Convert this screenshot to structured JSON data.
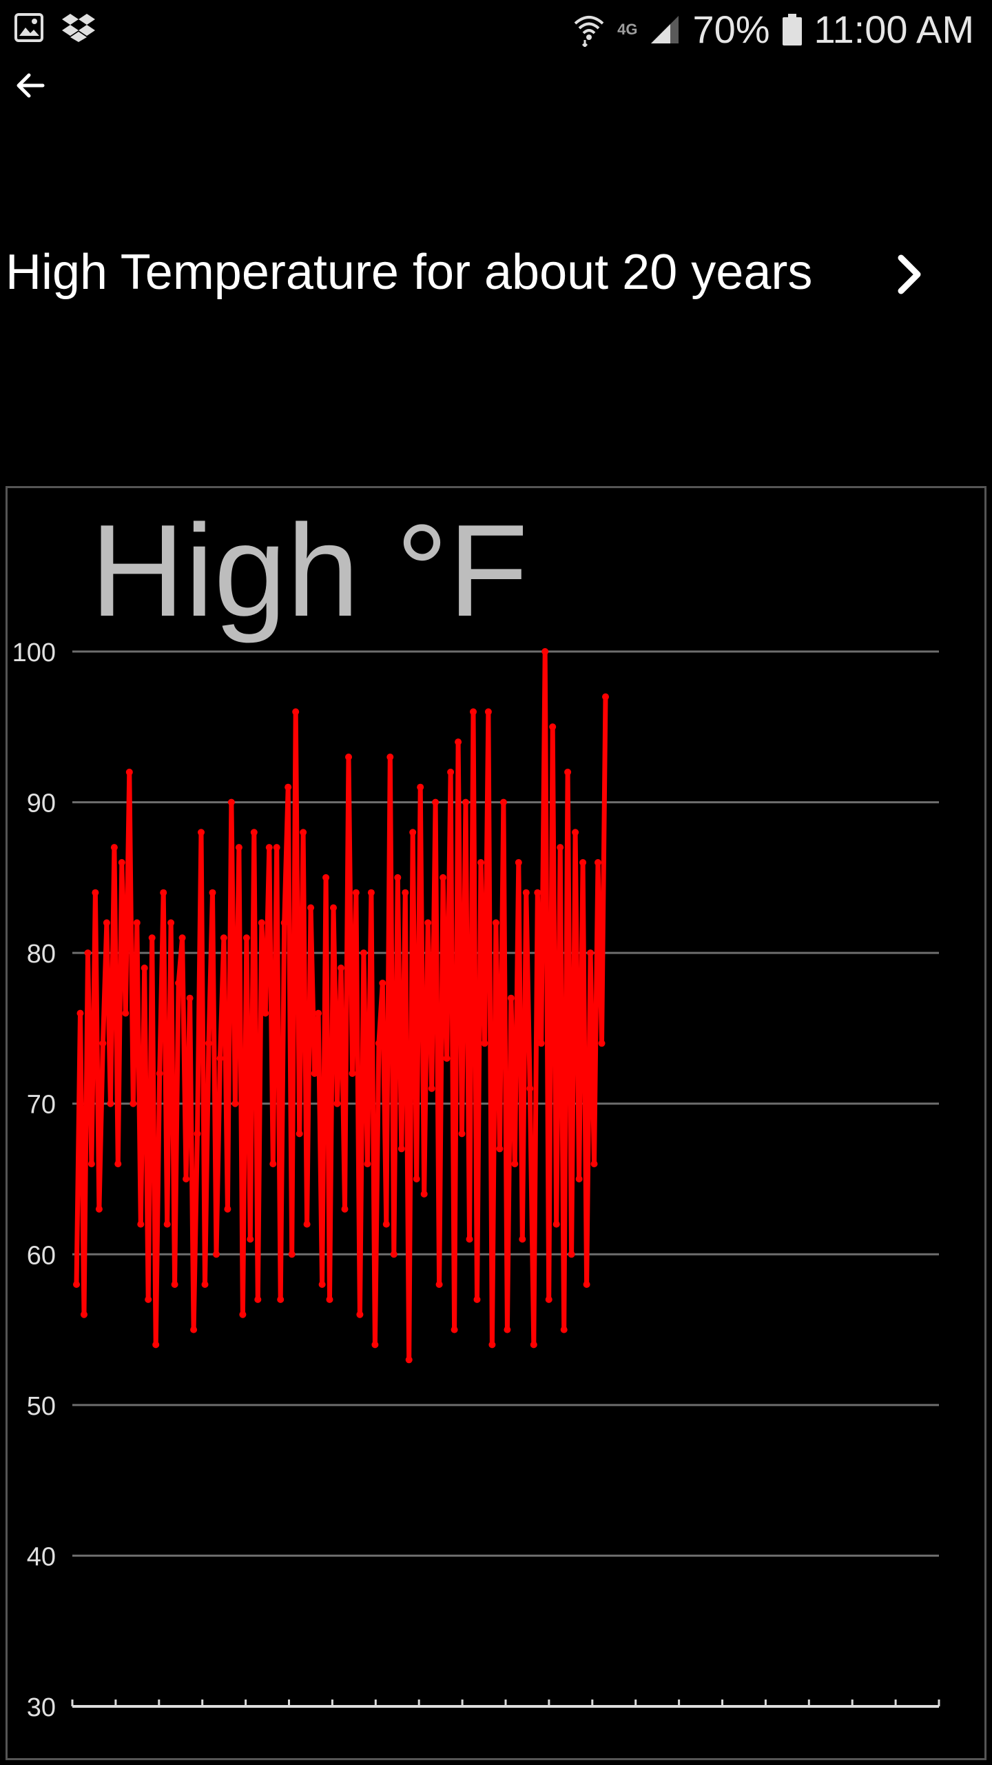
{
  "status_bar": {
    "network": "4G",
    "battery_percent": "70%",
    "time": "11:00 AM"
  },
  "header": {
    "title": "High Temperature for about 20 years"
  },
  "colors": {
    "series": "#ff0000",
    "grid": "#6e6e6e",
    "chart_title": "#bdbdbd",
    "tick_label": "#e0e0e0"
  },
  "chart_data": {
    "type": "line",
    "title": "High °F",
    "xlabel": "",
    "ylabel": "",
    "ylim": [
      30,
      100
    ],
    "yticks": [
      30,
      40,
      50,
      60,
      70,
      80,
      90,
      100
    ],
    "x_tick_count": 20,
    "grid": "horizontal",
    "legend": "none",
    "series": [
      {
        "values": [
          58,
          76,
          56,
          80,
          66,
          84,
          63,
          74,
          82,
          70,
          87,
          66,
          86,
          76,
          92,
          70,
          82,
          62,
          79,
          57,
          81,
          54,
          72,
          84,
          62,
          82,
          58,
          78,
          81,
          65,
          77,
          55,
          68,
          88,
          58,
          74,
          84,
          60,
          73,
          81,
          63,
          90,
          70,
          87,
          56,
          81,
          61,
          88,
          57,
          82,
          76,
          87,
          66,
          87,
          57,
          82,
          91,
          60,
          96,
          68,
          88,
          62,
          83,
          72,
          76,
          58,
          85,
          57,
          83,
          70,
          79,
          63,
          93,
          72,
          84,
          56,
          80,
          66,
          84,
          54,
          74,
          78,
          62,
          93,
          60,
          85,
          67,
          84,
          53,
          88,
          65,
          91,
          64,
          82,
          71,
          90,
          58,
          85,
          73,
          92,
          55,
          94,
          68,
          90,
          61,
          96,
          57,
          86,
          74,
          96,
          54,
          82,
          67,
          90,
          55,
          77,
          66,
          86,
          61,
          84,
          71,
          54,
          84,
          74,
          100,
          57,
          95,
          62,
          87,
          55,
          92,
          60,
          88,
          65,
          86,
          58,
          80,
          66,
          86,
          74,
          97
        ]
      }
    ]
  }
}
